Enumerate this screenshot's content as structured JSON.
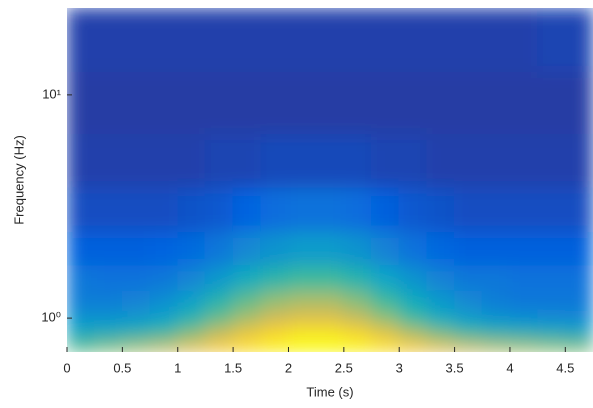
{
  "chart_data": {
    "type": "heatmap",
    "x_label": "Time (s)",
    "y_label": "Frequency (Hz)",
    "x": [
      0.125,
      0.375,
      0.625,
      0.875,
      1.125,
      1.375,
      1.625,
      1.875,
      2.125,
      2.375,
      2.625,
      2.875,
      3.125,
      3.375,
      3.625,
      3.875,
      4.125,
      4.375,
      4.625
    ],
    "y": [
      0.75,
      0.85,
      1.0,
      1.2,
      1.5,
      2,
      3,
      5,
      9,
      18
    ],
    "z": [
      [
        0.55,
        0.6,
        0.65,
        0.7,
        0.78,
        0.85,
        0.92,
        0.97,
        1,
        1,
        0.98,
        0.93,
        0.85,
        0.78,
        0.72,
        0.68,
        0.65,
        0.62,
        0.6
      ],
      [
        0.4,
        0.42,
        0.45,
        0.5,
        0.6,
        0.72,
        0.82,
        0.9,
        0.95,
        0.95,
        0.9,
        0.8,
        0.68,
        0.58,
        0.5,
        0.46,
        0.44,
        0.42,
        0.4
      ],
      [
        0.3,
        0.3,
        0.32,
        0.36,
        0.45,
        0.56,
        0.66,
        0.74,
        0.78,
        0.78,
        0.72,
        0.62,
        0.5,
        0.4,
        0.34,
        0.3,
        0.28,
        0.27,
        0.26
      ],
      [
        0.22,
        0.22,
        0.24,
        0.28,
        0.35,
        0.45,
        0.55,
        0.62,
        0.66,
        0.66,
        0.6,
        0.5,
        0.4,
        0.32,
        0.26,
        0.22,
        0.2,
        0.2,
        0.2
      ],
      [
        0.2,
        0.18,
        0.18,
        0.2,
        0.25,
        0.32,
        0.4,
        0.46,
        0.5,
        0.5,
        0.45,
        0.37,
        0.3,
        0.24,
        0.2,
        0.2,
        0.18,
        0.18,
        0.18
      ],
      [
        0.12,
        0.12,
        0.12,
        0.13,
        0.15,
        0.2,
        0.26,
        0.3,
        0.33,
        0.33,
        0.3,
        0.24,
        0.18,
        0.14,
        0.12,
        0.12,
        0.12,
        0.12,
        0.12
      ],
      [
        0.08,
        0.08,
        0.08,
        0.08,
        0.09,
        0.1,
        0.13,
        0.16,
        0.18,
        0.18,
        0.16,
        0.12,
        0.1,
        0.09,
        0.08,
        0.08,
        0.08,
        0.08,
        0.08
      ],
      [
        0.05,
        0.05,
        0.05,
        0.05,
        0.05,
        0.06,
        0.06,
        0.07,
        0.07,
        0.07,
        0.07,
        0.06,
        0.06,
        0.05,
        0.05,
        0.05,
        0.05,
        0.05,
        0.05
      ],
      [
        0.04,
        0.04,
        0.04,
        0.04,
        0.04,
        0.04,
        0.04,
        0.04,
        0.04,
        0.04,
        0.04,
        0.04,
        0.04,
        0.04,
        0.04,
        0.04,
        0.04,
        0.04,
        0.04
      ],
      [
        0.05,
        0.05,
        0.05,
        0.05,
        0.05,
        0.05,
        0.05,
        0.05,
        0.05,
        0.05,
        0.05,
        0.05,
        0.05,
        0.05,
        0.05,
        0.05,
        0.05,
        0.06,
        0.06
      ]
    ],
    "zlim": [
      0,
      1
    ],
    "colormap": [
      "#352a87",
      "#0363e1",
      "#1485d4",
      "#06a7c6",
      "#38b99e",
      "#92bf73",
      "#d9ba56",
      "#fcce2e",
      "#f9fb0e"
    ],
    "xlim": [
      0,
      4.75
    ],
    "xticks": [
      0,
      0.5,
      1,
      1.5,
      2,
      2.5,
      3,
      3.5,
      4,
      4.5
    ],
    "ylim": [
      0.705,
      24.5
    ],
    "y_scale": "log",
    "yticks": [
      {
        "value": 1,
        "label": "10⁰"
      },
      {
        "value": 10,
        "label": "10¹"
      }
    ]
  }
}
